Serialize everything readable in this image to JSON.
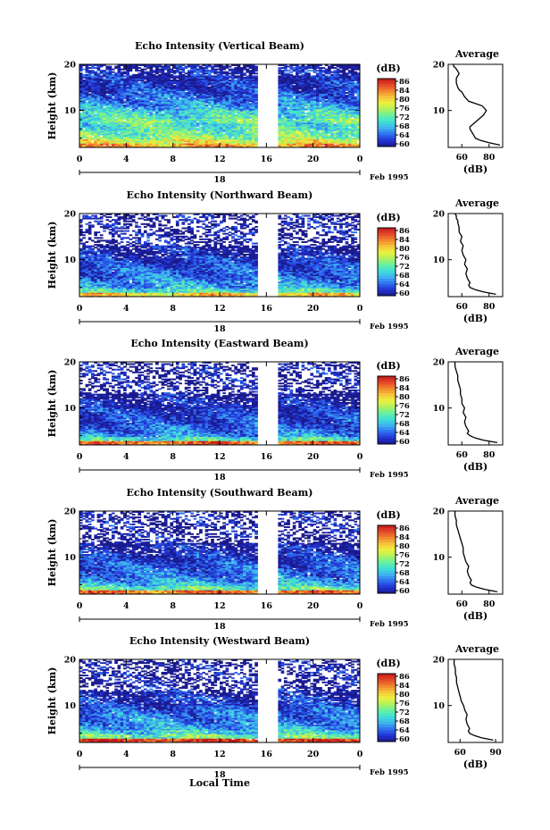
{
  "figure": {
    "xlabel": "Local Time",
    "date_label": "Feb 1995",
    "day_label": "18",
    "x_ticks": [
      "0",
      "4",
      "8",
      "12",
      "16",
      "20",
      "0"
    ],
    "y_ticks": [
      "20",
      "10"
    ],
    "ylabel": "Height (km)",
    "colorbar": {
      "unit": "(dB)",
      "ticks": [
        "86",
        "84",
        "80",
        "76",
        "72",
        "68",
        "64",
        "60"
      ],
      "palette": [
        "#1a1a8c",
        "#2233d6",
        "#2f70f0",
        "#3fb1ef",
        "#3fe0d8",
        "#66f0a0",
        "#aef25e",
        "#ecf23f",
        "#f6c43a",
        "#f2862d",
        "#e5452a",
        "#c01a1a"
      ]
    }
  },
  "panels": [
    {
      "title": "Echo Intensity (Vertical Beam)",
      "avg": {
        "title": "Average",
        "xlabel": "(dB)",
        "xticks": [
          "60",
          "80"
        ],
        "yticks": [
          "20",
          "10"
        ]
      }
    },
    {
      "title": "Echo Intensity (Northward Beam)",
      "avg": {
        "title": "Average",
        "xlabel": "(dB)",
        "xticks": [
          "60",
          "80"
        ],
        "yticks": [
          "20",
          "10"
        ]
      }
    },
    {
      "title": "Echo Intensity (Eastward Beam)",
      "avg": {
        "title": "Average",
        "xlabel": "(dB)",
        "xticks": [
          "60",
          "80"
        ],
        "yticks": [
          "20",
          "10"
        ]
      }
    },
    {
      "title": "Echo Intensity (Southward Beam)",
      "avg": {
        "title": "Average",
        "xlabel": "(dB)",
        "xticks": [
          "60",
          "80"
        ],
        "yticks": [
          "20",
          "10"
        ]
      }
    },
    {
      "title": "Echo Intensity (Westward Beam)",
      "avg": {
        "title": "Average",
        "xlabel": "(dB)",
        "xticks": [
          "60",
          "90"
        ],
        "yticks": [
          "20",
          "10"
        ]
      }
    }
  ],
  "chart_data": [
    {
      "type": "heatmap",
      "title": "Echo Intensity (Vertical Beam)",
      "xlabel": "",
      "ylabel": "Height (km)",
      "xlim": [
        0,
        24
      ],
      "ylim": [
        2,
        20
      ],
      "zlim": [
        60,
        86
      ],
      "colorbar_label": "(dB)",
      "data_gap_hours": [
        15.2,
        17.0
      ],
      "column_profiles": [
        80,
        76,
        73,
        72,
        71,
        70,
        72,
        70,
        69,
        67,
        66,
        65,
        64,
        63,
        62,
        62,
        61,
        61,
        61,
        60
      ]
    },
    {
      "type": "line",
      "title": "Average",
      "xlabel": "(dB)",
      "ylabel": "Height (km)",
      "xlim": [
        50,
        90
      ],
      "ylim": [
        2,
        20
      ],
      "series": [
        {
          "x": [
            88,
            80,
            74,
            70,
            69,
            68,
            67,
            66,
            66,
            68,
            72,
            76,
            78,
            75,
            70,
            65,
            62,
            60,
            58,
            57,
            56,
            56,
            57,
            58,
            57,
            56,
            55,
            54,
            54
          ],
          "y": [
            2.5,
            3,
            3.5,
            4,
            4.5,
            5,
            5.5,
            6,
            6.5,
            7,
            8,
            9,
            10,
            11,
            11.5,
            12,
            13,
            14,
            14.5,
            15,
            16,
            17,
            17.5,
            18,
            18.5,
            19,
            19.3,
            19.6,
            20
          ]
        }
      ]
    },
    {
      "type": "heatmap",
      "title": "Echo Intensity (Northward Beam)",
      "xlabel": "",
      "ylabel": "Height (km)",
      "xlim": [
        0,
        24
      ],
      "ylim": [
        2,
        20
      ],
      "zlim": [
        60,
        86
      ],
      "colorbar_label": "(dB)",
      "data_gap_hours": [
        15.2,
        17.0
      ],
      "column_profiles": [
        78,
        70,
        67,
        66,
        65,
        64,
        64,
        63,
        62,
        62,
        61,
        61,
        60,
        60,
        60,
        60,
        60,
        60,
        60,
        60
      ]
    },
    {
      "type": "line",
      "title": "Average",
      "xlabel": "(dB)",
      "ylabel": "Height (km)",
      "xlim": [
        50,
        90
      ],
      "ylim": [
        2,
        20
      ],
      "series": [
        {
          "x": [
            85,
            76,
            70,
            66,
            65,
            66,
            64,
            63,
            64,
            62,
            63,
            61,
            60,
            61,
            59,
            60,
            58,
            58,
            57,
            57,
            56,
            56,
            55
          ],
          "y": [
            2.5,
            3,
            3.5,
            4,
            4.5,
            5,
            6,
            7,
            8,
            9,
            10,
            11,
            12,
            13,
            14,
            15,
            16,
            17,
            18,
            18.5,
            19,
            19.5,
            20
          ]
        }
      ]
    },
    {
      "type": "heatmap",
      "title": "Echo Intensity (Eastward Beam)",
      "xlabel": "",
      "ylabel": "Height (km)",
      "xlim": [
        0,
        24
      ],
      "ylim": [
        2,
        20
      ],
      "zlim": [
        60,
        86
      ],
      "colorbar_label": "(dB)",
      "data_gap_hours": [
        15.2,
        17.0
      ],
      "column_profiles": [
        82,
        70,
        66,
        65,
        64,
        63,
        63,
        62,
        62,
        61,
        61,
        60,
        60,
        60,
        60,
        60,
        60,
        60,
        60,
        60
      ]
    },
    {
      "type": "line",
      "title": "Average",
      "xlabel": "(dB)",
      "ylabel": "Height (km)",
      "xlim": [
        50,
        90
      ],
      "ylim": [
        2,
        20
      ],
      "series": [
        {
          "x": [
            86,
            76,
            70,
            66,
            64,
            65,
            63,
            62,
            63,
            61,
            62,
            60,
            60,
            59,
            59,
            58,
            57,
            57,
            56,
            55,
            55
          ],
          "y": [
            2.5,
            3,
            3.5,
            4,
            4.5,
            5,
            6,
            7,
            8,
            9,
            10,
            11,
            12,
            13,
            14,
            15,
            16,
            17,
            18,
            19,
            20
          ]
        }
      ]
    },
    {
      "type": "heatmap",
      "title": "Echo Intensity (Southward Beam)",
      "xlabel": "",
      "ylabel": "Height (km)",
      "xlim": [
        0,
        24
      ],
      "ylim": [
        2,
        20
      ],
      "zlim": [
        60,
        86
      ],
      "colorbar_label": "(dB)",
      "data_gap_hours": [
        15.2,
        17.0
      ],
      "column_profiles": [
        82,
        71,
        68,
        66,
        65,
        64,
        64,
        63,
        62,
        62,
        61,
        61,
        60,
        60,
        60,
        60,
        60,
        60,
        60,
        60
      ]
    },
    {
      "type": "line",
      "title": "Average",
      "xlabel": "(dB)",
      "ylabel": "Height (km)",
      "xlim": [
        50,
        90
      ],
      "ylim": [
        2,
        20
      ],
      "series": [
        {
          "x": [
            86,
            77,
            71,
            67,
            66,
            67,
            65,
            64,
            65,
            63,
            62,
            61,
            61,
            60,
            59,
            58,
            57,
            56,
            56,
            55,
            55
          ],
          "y": [
            2.5,
            3,
            3.5,
            4,
            4.5,
            5,
            6,
            7,
            8,
            9,
            10,
            11,
            12,
            13,
            14,
            15,
            16,
            17,
            18,
            19,
            20
          ]
        }
      ]
    },
    {
      "type": "heatmap",
      "title": "Echo Intensity (Westward Beam)",
      "xlabel": "Local Time",
      "ylabel": "Height (km)",
      "xlim": [
        0,
        24
      ],
      "ylim": [
        2,
        20
      ],
      "zlim": [
        60,
        86
      ],
      "colorbar_label": "(dB)",
      "data_gap_hours": [
        15.2,
        17.0
      ],
      "column_profiles": [
        84,
        72,
        69,
        67,
        66,
        65,
        65,
        64,
        63,
        62,
        62,
        61,
        61,
        60,
        60,
        60,
        60,
        60,
        60,
        60
      ]
    },
    {
      "type": "line",
      "title": "Average",
      "xlabel": "(dB)",
      "ylabel": "Height (km)",
      "xlim": [
        50,
        96
      ],
      "ylim": [
        2,
        20
      ],
      "series": [
        {
          "x": [
            88,
            78,
            72,
            68,
            67,
            68,
            66,
            65,
            66,
            64,
            63,
            61,
            60,
            59,
            58,
            57,
            57,
            56,
            56,
            55,
            55
          ],
          "y": [
            2.5,
            3,
            3.5,
            4,
            4.5,
            5,
            6,
            7,
            8,
            9,
            10,
            11,
            12,
            13,
            14,
            15,
            16,
            17,
            18,
            19,
            20
          ]
        }
      ]
    }
  ]
}
